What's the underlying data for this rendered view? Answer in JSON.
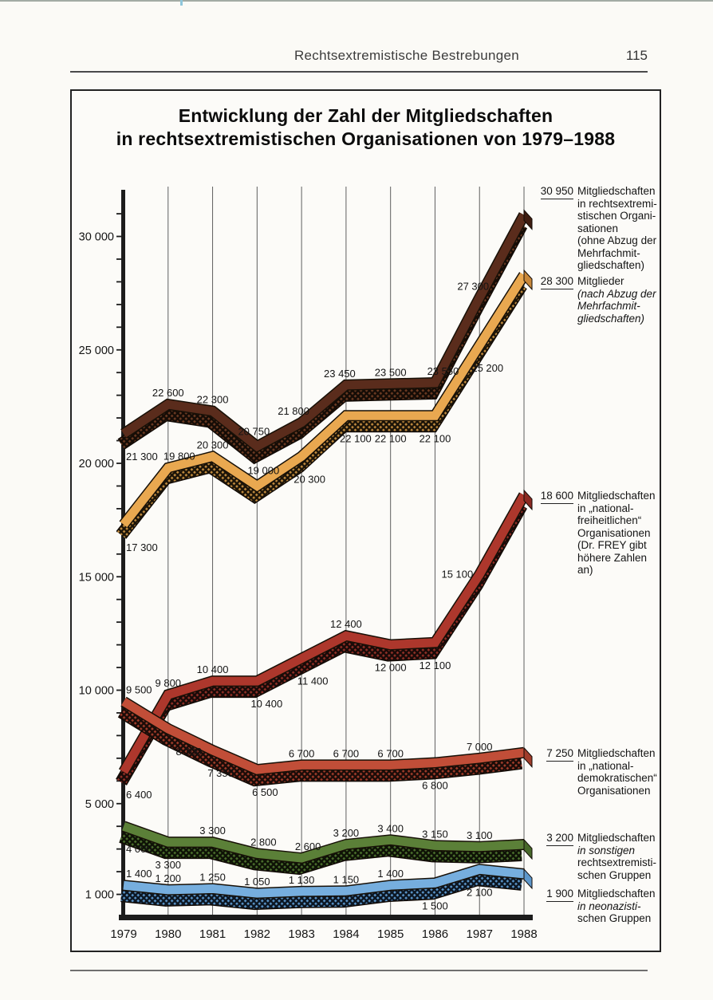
{
  "header": {
    "title": "Rechtsextremistische Bestrebungen",
    "page_number": "115"
  },
  "chart": {
    "title_line1": "Entwicklung der Zahl der Mitgliedschaften",
    "title_line2": "in rechtsextremistischen Organisationen von 1979–1988",
    "y_ticks": [
      {
        "label": "30 000",
        "value": 30000
      },
      {
        "label": "25 000",
        "value": 25000
      },
      {
        "label": "20 000",
        "value": 20000
      },
      {
        "label": "15 000",
        "value": 15000
      },
      {
        "label": "10 000",
        "value": 10000
      },
      {
        "label": "5 000",
        "value": 5000
      },
      {
        "label": "1 000",
        "value": 1000
      }
    ]
  },
  "chart_data": {
    "type": "line",
    "title": "Entwicklung der Zahl der Mitgliedschaften in rechtsextremistischen Organisationen von 1979–1988",
    "x": [
      1979,
      1980,
      1981,
      1982,
      1983,
      1984,
      1985,
      1986,
      1987,
      1988
    ],
    "xlabel": "",
    "ylabel": "",
    "ylim": [
      0,
      32000
    ],
    "grid": "vertical-year-lines",
    "legend_position": "right",
    "series": [
      {
        "name": "Mitgliedschaften in rechtsextremistischen Organisationen (ohne Abzug der Mehrfachmitgliedschaften)",
        "color": "#5a2c1c",
        "cap": "#3f1d11",
        "shadow_bg": "#150c06",
        "shadow_dot": "#6b3a22",
        "values": [
          21300,
          22600,
          22300,
          20750,
          21800,
          23450,
          23500,
          23550,
          27300,
          30950
        ],
        "point_labels": [
          {
            "t": "21 300",
            "p": "b"
          },
          {
            "t": "22 600",
            "p": "a"
          },
          {
            "t": "22 300",
            "p": "a"
          },
          {
            "t": "20 750",
            "p": "a",
            "dx": -4,
            "dy": -4
          },
          {
            "t": "21 800",
            "p": "a",
            "dx": -10
          },
          {
            "t": "23 450",
            "p": "a",
            "dx": -8
          },
          {
            "t": "23 500",
            "p": "a"
          },
          {
            "t": "23 550",
            "p": "a",
            "dx": 10
          },
          {
            "t": "27 300",
            "p": "a",
            "dx": -8
          },
          null
        ]
      },
      {
        "name": "Mitglieder (nach Abzug der Mehrfachmitgliedschaften)",
        "color": "#e9a850",
        "cap": "#c9883a",
        "shadow_bg": "#1c1408",
        "shadow_dot": "#c08a3e",
        "values": [
          17300,
          19800,
          20300,
          19000,
          20300,
          22100,
          22100,
          22100,
          25200,
          28300
        ],
        "point_labels": [
          {
            "t": "17 300",
            "p": "b"
          },
          {
            "t": "19 800",
            "p": "a",
            "dx": 14
          },
          {
            "t": "20 300",
            "p": "a"
          },
          {
            "t": "19 000",
            "p": "a",
            "dy": -5,
            "dx": 8
          },
          {
            "t": "20 300",
            "p": "b",
            "dx": 10
          },
          {
            "t": "22 100",
            "p": "b",
            "dx": 12
          },
          {
            "t": "22 100",
            "p": "b"
          },
          {
            "t": "22 100",
            "p": "b"
          },
          {
            "t": "25 200",
            "p": "b",
            "dx": 10
          },
          null
        ]
      },
      {
        "name": "Mitgliedschaften in „national-freiheitlichen“ Organisationen (Dr. FREY gibt höhere Zahlen an)",
        "color": "#ad372c",
        "cap": "#8c2a22",
        "shadow_bg": "#190a08",
        "shadow_dot": "#8f2f26",
        "values": [
          6400,
          9800,
          10400,
          10400,
          11400,
          12400,
          12000,
          12100,
          15100,
          18600
        ],
        "point_labels": [
          {
            "t": "6 400",
            "p": "b"
          },
          {
            "t": "9 800",
            "p": "a"
          },
          {
            "t": "10 400",
            "p": "a"
          },
          {
            "t": "10 400",
            "p": "b",
            "dx": 12
          },
          {
            "t": "11 400",
            "p": "b",
            "dx": 14
          },
          {
            "t": "12 400",
            "p": "a"
          },
          {
            "t": "12 000",
            "p": "b"
          },
          {
            "t": "12 100",
            "p": "b"
          },
          {
            "t": "15 100",
            "p": "l"
          },
          null
        ]
      },
      {
        "name": "Mitgliedschaften in „national-demokratischen“ Organisationen",
        "color": "#c14e38",
        "cap": "#a03c2a",
        "shadow_bg": "#1b0c08",
        "shadow_dot": "#a03c2a",
        "values": [
          9500,
          8300,
          7350,
          6500,
          6700,
          6700,
          6700,
          6800,
          7000,
          7250
        ],
        "point_labels": [
          {
            "t": "9 500",
            "p": "a"
          },
          {
            "t": "8 300",
            "p": "b",
            "dx": 26
          },
          {
            "t": "7 350",
            "p": "b",
            "dx": 10
          },
          {
            "t": "6 500",
            "p": "b",
            "dx": 10
          },
          {
            "t": "6 700",
            "p": "a"
          },
          {
            "t": "6 700",
            "p": "a"
          },
          {
            "t": "6 700",
            "p": "a"
          },
          {
            "t": "6 800",
            "p": "b"
          },
          {
            "t": "7 000",
            "p": "a"
          },
          null
        ]
      },
      {
        "name": "Mitgliedschaften in sonstigen rechtsextremistischen Gruppen",
        "color": "#5b8038",
        "cap": "#47682a",
        "shadow_bg": "#0e1206",
        "shadow_dot": "#4a6e2c",
        "values": [
          4000,
          3300,
          3300,
          2800,
          2600,
          3200,
          3400,
          3150,
          3100,
          3200
        ],
        "point_labels": [
          {
            "t": "4 000",
            "p": "b"
          },
          {
            "t": "3 300",
            "p": "b"
          },
          {
            "t": "3 300",
            "p": "a"
          },
          {
            "t": "2 800",
            "p": "a",
            "dx": 8
          },
          {
            "t": "2 600",
            "p": "a",
            "dx": 8
          },
          {
            "t": "3 200",
            "p": "a"
          },
          {
            "t": "3 400",
            "p": "a"
          },
          {
            "t": "3 150",
            "p": "a"
          },
          {
            "t": "3 100",
            "p": "a"
          },
          null
        ]
      },
      {
        "name": "Mitgliedschaften in neonazistischen Gruppen",
        "color": "#76aede",
        "cap": "#5d97cb",
        "shadow_bg": "#0c1622",
        "shadow_dot": "#5a94c8",
        "values": [
          1400,
          1200,
          1250,
          1050,
          1130,
          1150,
          1400,
          1500,
          2100,
          1900
        ],
        "point_labels": [
          {
            "t": "1 400",
            "p": "a"
          },
          {
            "t": "1 200",
            "p": "a"
          },
          {
            "t": "1 250",
            "p": "a"
          },
          {
            "t": "1 050",
            "p": "a"
          },
          {
            "t": "1 130",
            "p": "a"
          },
          {
            "t": "1 150",
            "p": "a"
          },
          {
            "t": "1 400",
            "p": "a"
          },
          {
            "t": "1 500",
            "p": "b"
          },
          {
            "t": "2 100",
            "p": "b"
          },
          null
        ]
      }
    ]
  },
  "legends": [
    {
      "value": "30 950",
      "lines": [
        "Mitgliedschaften",
        "in rechtsextremi-",
        "stischen Organi-",
        "sationen",
        "(ohne Abzug der",
        "Mehrfachmit-",
        "gliedschaften)"
      ],
      "italic_lines": []
    },
    {
      "value": "28 300",
      "lines": [
        "Mitglieder",
        "(nach Abzug der",
        "Mehrfachmit-",
        "gliedschaften)"
      ],
      "italic_lines": [
        1,
        2,
        3
      ]
    },
    {
      "value": "18 600",
      "lines": [
        "Mitgliedschaften",
        "in „national-",
        "freiheitlichen“",
        "Organisationen",
        "(Dr. FREY gibt",
        "höhere Zahlen",
        "an)"
      ],
      "italic_lines": []
    },
    {
      "value": "7 250",
      "lines": [
        "Mitgliedschaften",
        "in „national-",
        "demokratischen“",
        "Organisationen"
      ],
      "italic_lines": []
    },
    {
      "value": "3 200",
      "lines": [
        "Mitgliedschaften",
        "in sonstigen",
        "rechtsextremisti-",
        "schen Gruppen"
      ],
      "italic_lines": [
        1
      ]
    },
    {
      "value": "1 900",
      "lines": [
        "Mitgliedschaften",
        "in neonazisti-",
        "schen Gruppen"
      ],
      "italic_lines": [
        1
      ]
    }
  ]
}
